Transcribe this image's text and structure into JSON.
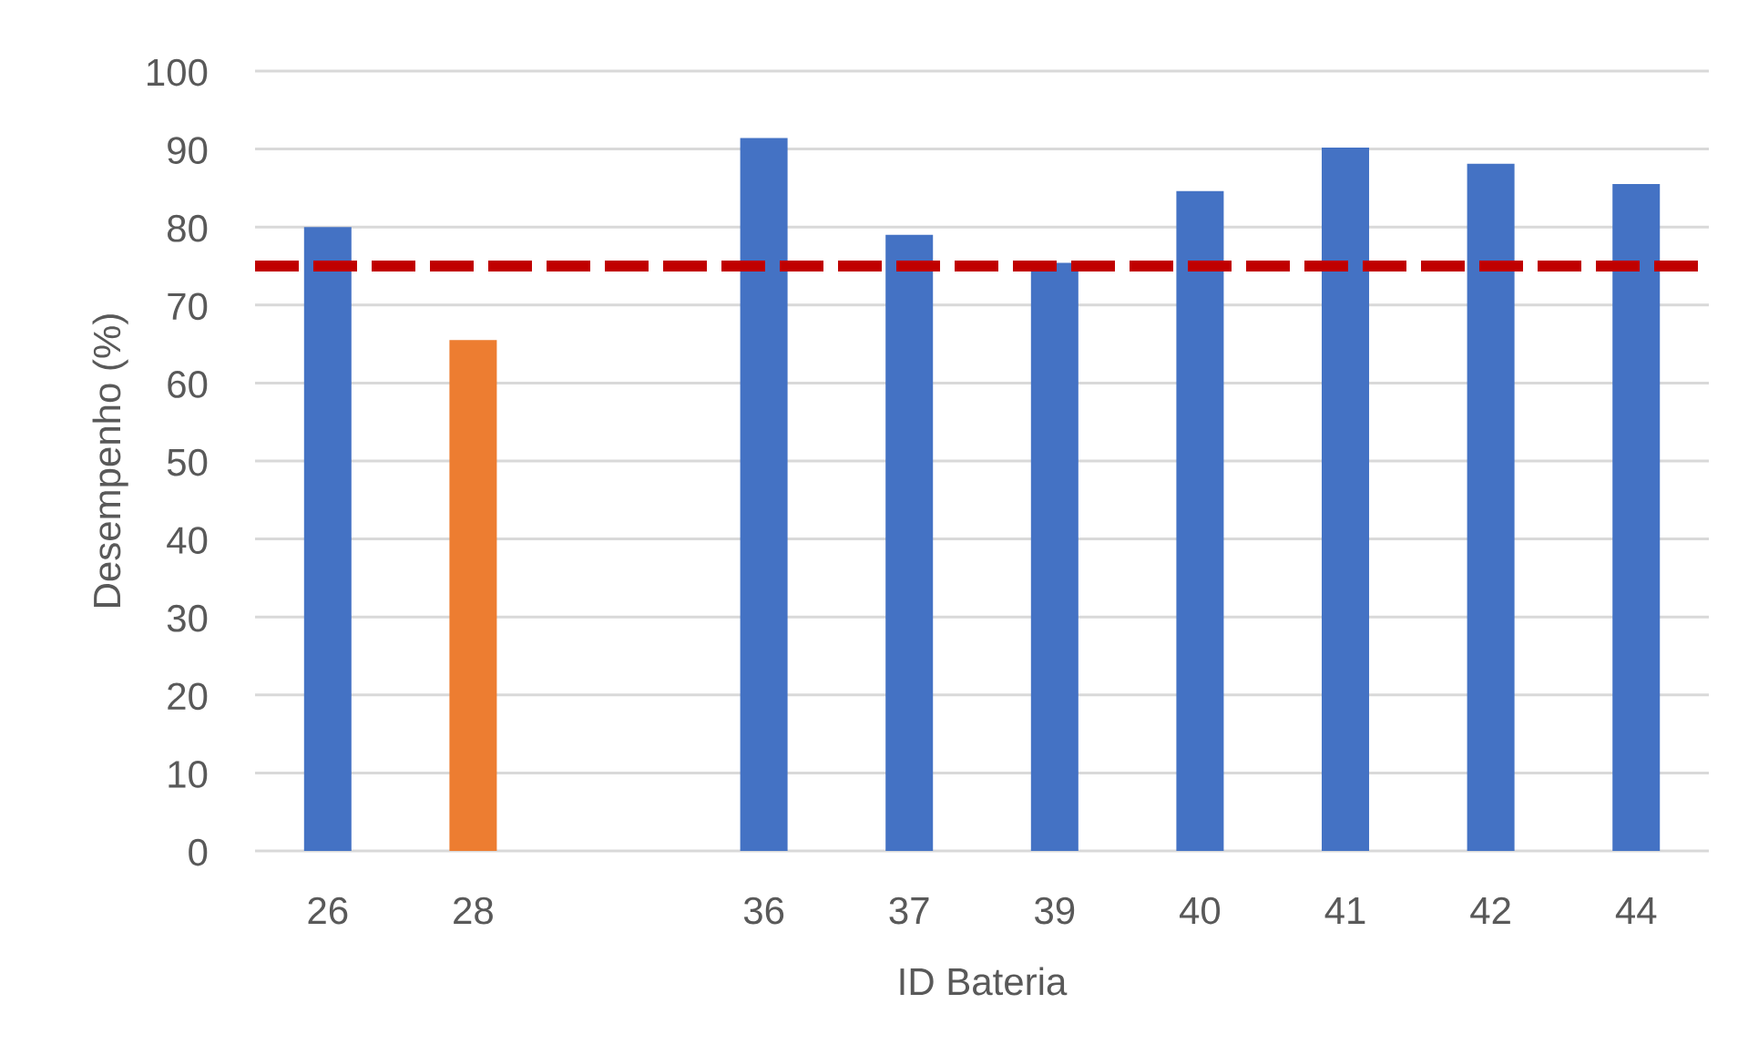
{
  "chart_data": {
    "type": "bar",
    "categories": [
      "26",
      "28",
      null,
      "36",
      "37",
      "39",
      "40",
      "41",
      "42",
      "44"
    ],
    "values": [
      80.0,
      65.5,
      null,
      91.4,
      79.0,
      75.4,
      84.6,
      90.2,
      88.1,
      85.5
    ],
    "colors": [
      "#4472c4",
      "#ed7d31",
      "#4472c4",
      "#4472c4",
      "#4472c4",
      "#4472c4",
      "#4472c4",
      "#4472c4",
      "#4472c4",
      "#4472c4"
    ],
    "xlabel": "ID Bateria",
    "ylabel": "Desempenho (%)",
    "ylim": [
      0,
      100
    ],
    "yticks": [
      0,
      10,
      20,
      30,
      40,
      50,
      60,
      70,
      80,
      90,
      100
    ],
    "grid": "y",
    "ref_lines": [
      {
        "axis": "y",
        "value": 75,
        "color": "#c00000",
        "line_style": "dashed"
      }
    ]
  }
}
